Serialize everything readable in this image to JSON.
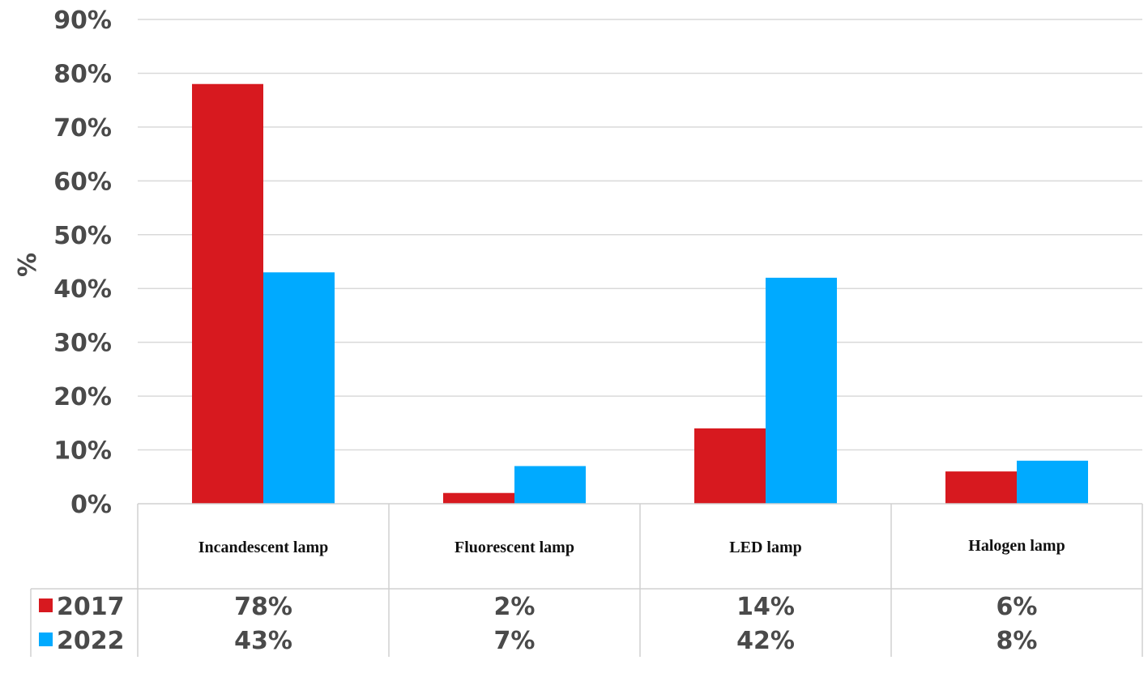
{
  "chart_data": {
    "type": "bar",
    "ylabel": "%",
    "ylim": [
      0,
      90
    ],
    "yticks": [
      "0%",
      "10%",
      "20%",
      "30%",
      "40%",
      "50%",
      "60%",
      "70%",
      "80%",
      "90%"
    ],
    "grid": true,
    "legend": "data-table-below",
    "categories": [
      "Incandescent lamp",
      "Fluorescent lamp",
      "LED lamp",
      "Halogen lamp"
    ],
    "series": [
      {
        "name": "2017",
        "color": "#d7191f",
        "values": [
          78,
          2,
          14,
          6
        ],
        "labels": [
          "78%",
          "2%",
          "14%",
          "6%"
        ]
      },
      {
        "name": "2022",
        "color": "#00aaff",
        "values": [
          43,
          7,
          42,
          8
        ],
        "labels": [
          "43%",
          "7%",
          "42%",
          "8%"
        ]
      }
    ]
  }
}
